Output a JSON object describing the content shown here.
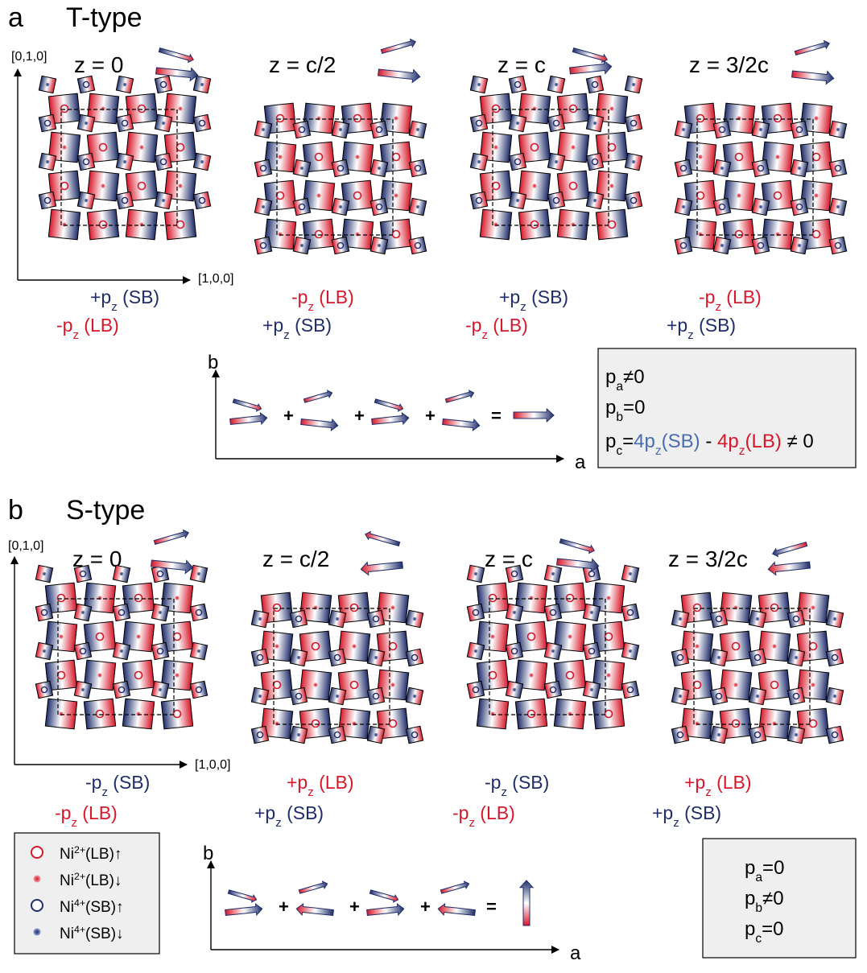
{
  "colors": {
    "red": "#d8182a",
    "blue": "#1f2d6b",
    "blueText": "#4a6db0",
    "boxFill": "#efefef"
  },
  "panels": [
    {
      "letter": "a",
      "title": "T-type",
      "axis_y": "[0,1,0]",
      "axis_x": "[1,0,0]",
      "layers": [
        {
          "z": "z = 0",
          "line1": {
            "sign": "+p",
            "sub": "z",
            "tag": " (SB)",
            "color": "blue"
          },
          "line2": {
            "sign": "-p",
            "sub": "z",
            "tag": " (LB)",
            "color": "red"
          }
        },
        {
          "z": "z = c/2",
          "line1": {
            "sign": "-p",
            "sub": "z",
            "tag": " (LB)",
            "color": "red"
          },
          "line2": {
            "sign": "+p",
            "sub": "z",
            "tag": " (SB)",
            "color": "blue"
          }
        },
        {
          "z": "z = c",
          "line1": {
            "sign": "+p",
            "sub": "z",
            "tag": " (SB)",
            "color": "blue"
          },
          "line2": {
            "sign": "-p",
            "sub": "z",
            "tag": " (LB)",
            "color": "red"
          }
        },
        {
          "z": "z = 3/2c",
          "line1": {
            "sign": "-p",
            "sub": "z",
            "tag": " (LB)",
            "color": "red"
          },
          "line2": {
            "sign": "+p",
            "sub": "z",
            "tag": " (SB)",
            "color": "blue"
          }
        }
      ],
      "sum_axis_b": "b",
      "sum_axis_a": "a",
      "plus": "+",
      "equals": "=",
      "result": [
        {
          "p": "p",
          "sub": "a",
          "rest": "≠0"
        },
        {
          "p": "p",
          "sub": "b",
          "rest": "=0"
        }
      ],
      "pc_line": {
        "p": "p",
        "sub": "c",
        "eq": "=",
        "sb": "4p",
        "sb_sub": "z",
        "sb_tag": "(SB)",
        "minus": " - ",
        "lb": "4p",
        "lb_sub": "z",
        "lb_tag": "(LB)",
        "tail": " ≠ 0"
      }
    },
    {
      "letter": "b",
      "title": "S-type",
      "axis_y": "[0,1,0]",
      "axis_x": "[1,0,0]",
      "layers": [
        {
          "z": "z = 0",
          "line1": {
            "sign": "-p",
            "sub": "z",
            "tag": " (SB)",
            "color": "blue"
          },
          "line2": {
            "sign": "-p",
            "sub": "z",
            "tag": " (LB)",
            "color": "red"
          }
        },
        {
          "z": "z = c/2",
          "line1": {
            "sign": "+p",
            "sub": "z",
            "tag": " (LB)",
            "color": "red"
          },
          "line2": {
            "sign": "+p",
            "sub": "z",
            "tag": " (SB)",
            "color": "blue"
          }
        },
        {
          "z": "z = c",
          "line1": {
            "sign": "-p",
            "sub": "z",
            "tag": " (SB)",
            "color": "blue"
          },
          "line2": {
            "sign": "-p",
            "sub": "z",
            "tag": " (LB)",
            "color": "red"
          }
        },
        {
          "z": "z = 3/2c",
          "line1": {
            "sign": "+p",
            "sub": "z",
            "tag": " (LB)",
            "color": "red"
          },
          "line2": {
            "sign": "+p",
            "sub": "z",
            "tag": " (SB)",
            "color": "blue"
          }
        }
      ],
      "sum_axis_b": "b",
      "sum_axis_a": "a",
      "plus": "+",
      "equals": "=",
      "result": [
        {
          "p": "p",
          "sub": "a",
          "rest": "=0"
        },
        {
          "p": "p",
          "sub": "b",
          "rest": "≠0"
        },
        {
          "p": "p",
          "sub": "c",
          "rest": "=0"
        }
      ]
    }
  ],
  "legend": [
    {
      "base": "Ni",
      "sup": "2+",
      "rest": "(LB)↑",
      "marker": "ring-red"
    },
    {
      "base": "Ni",
      "sup": "2+",
      "rest": "(LB)↓",
      "marker": "dot-red"
    },
    {
      "base": "Ni",
      "sup": "4+",
      "rest": "(SB)↑",
      "marker": "ring-blue"
    },
    {
      "base": "Ni",
      "sup": "4+",
      "rest": "(SB)↓",
      "marker": "dot-blue"
    }
  ]
}
